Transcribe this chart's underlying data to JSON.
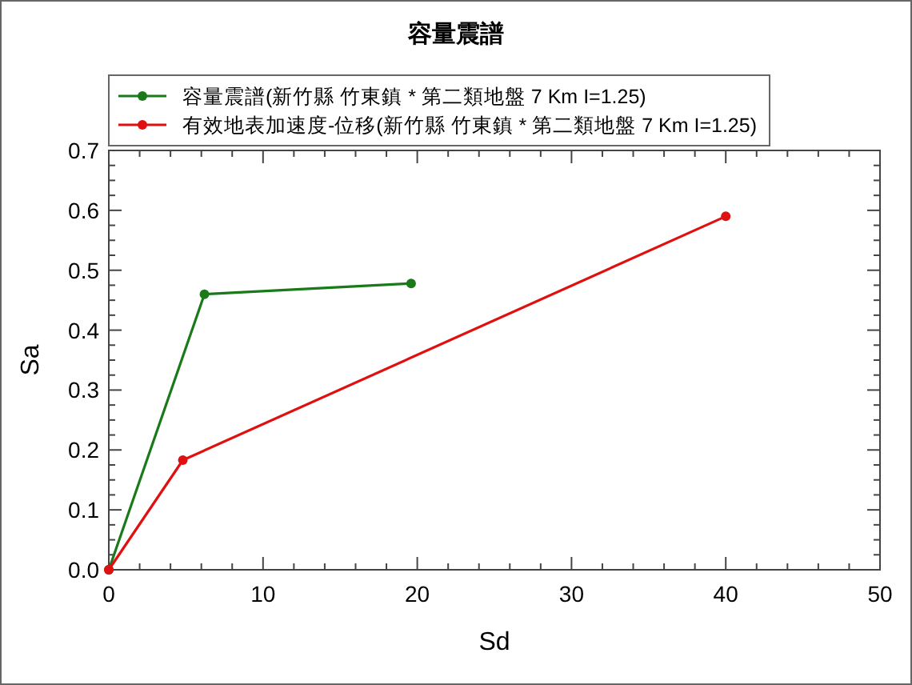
{
  "chart_data": {
    "type": "line",
    "title": "容量震譜",
    "xlabel": "Sd",
    "ylabel": "Sa",
    "xlim": [
      0,
      50
    ],
    "xticks": [
      0,
      10,
      20,
      30,
      40,
      50
    ],
    "ylim": [
      0,
      0.7
    ],
    "yticks": [
      {
        "value": 0,
        "label": "0.0"
      },
      0.1,
      0.2,
      0.3,
      0.4,
      0.5,
      0.6,
      0.7
    ],
    "grid": false,
    "legend": "top",
    "marker": "circle",
    "line_style": "solid",
    "series": [
      {
        "name": "容量震譜(新竹縣 竹東鎮 * 第二類地盤 7 Km I=1.25)",
        "color": "#1a7a1a",
        "x": [
          0,
          6.2,
          19.6
        ],
        "values": [
          0,
          0.46,
          0.478
        ]
      },
      {
        "name": "有效地表加速度-位移(新竹縣 竹東鎮 * 第二類地盤 7 Km I=1.25)",
        "color": "#e01010",
        "x": [
          0,
          4.8,
          40
        ],
        "values": [
          0,
          0.183,
          0.59
        ]
      }
    ]
  }
}
